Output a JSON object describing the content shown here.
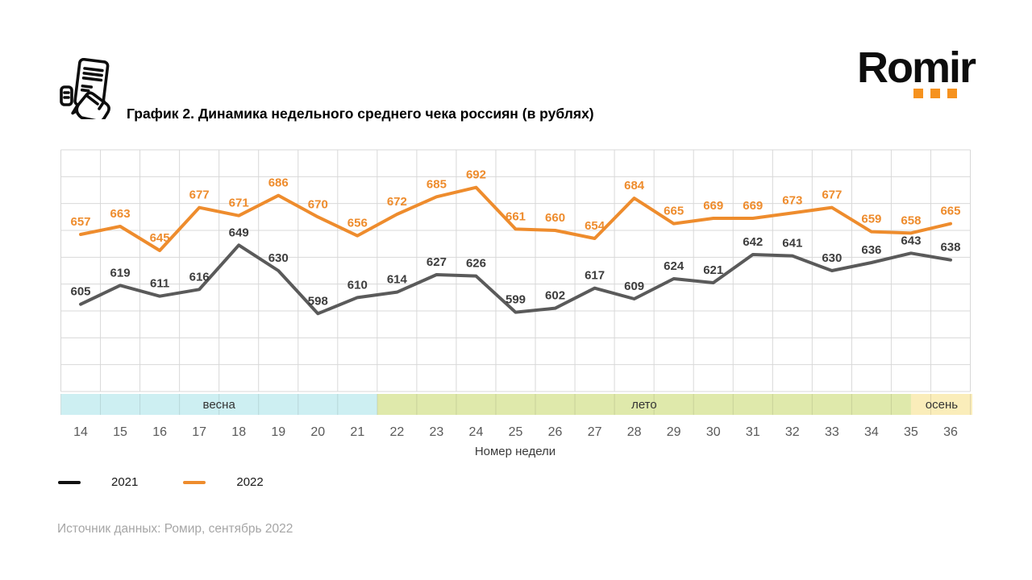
{
  "header": {
    "title": "График 2. Динамика недельного среднего чека россиян (в рублях)",
    "logo_text": "Romir",
    "logo_dot_color": "#F6921E",
    "icon": "receipt-in-hand-icon"
  },
  "chart_data": {
    "type": "line",
    "title": "График 2. Динамика недельного среднего чека россиян (в рублях)",
    "xlabel": "Номер недели",
    "ylabel": "",
    "categories": [
      14,
      15,
      16,
      17,
      18,
      19,
      20,
      21,
      22,
      23,
      24,
      25,
      26,
      27,
      28,
      29,
      30,
      31,
      32,
      33,
      34,
      35,
      36
    ],
    "series": [
      {
        "name": "2021",
        "color": "#5a5a5a",
        "label_color": "#3d3d3d",
        "values": [
          605,
          619,
          611,
          616,
          649,
          630,
          598,
          610,
          614,
          627,
          626,
          599,
          602,
          617,
          609,
          624,
          621,
          642,
          641,
          630,
          636,
          643,
          638
        ]
      },
      {
        "name": "2022",
        "color": "#ee8c2d",
        "label_color": "#ee8c2d",
        "values": [
          657,
          663,
          645,
          677,
          671,
          686,
          670,
          656,
          672,
          685,
          692,
          661,
          660,
          654,
          684,
          665,
          669,
          669,
          673,
          677,
          659,
          658,
          665
        ]
      }
    ],
    "ylim": [
      540,
      720
    ],
    "grid": true,
    "grid_color": "#d8d8d8",
    "legend_position": "bottom-left",
    "bands": [
      {
        "label": "весна",
        "start": 13.5,
        "end": 21.5,
        "color": "#cdeff2"
      },
      {
        "label": "лето",
        "start": 21.5,
        "end": 35.0,
        "color": "#dfe9ab"
      },
      {
        "label": "осень",
        "start": 35.0,
        "end": 36.55,
        "color": "#faedba"
      }
    ],
    "band_label_color": "#333333",
    "tick_color": "#595959"
  },
  "legend": {
    "items": [
      {
        "label": "2021",
        "color": "#111111"
      },
      {
        "label": "2022",
        "color": "#ee8c2d"
      }
    ]
  },
  "footer": {
    "source": "Источник данных: Ромир, сентябрь 2022"
  }
}
